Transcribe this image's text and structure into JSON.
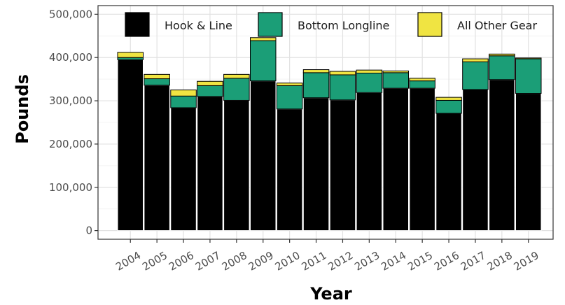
{
  "chart_data": {
    "type": "bar",
    "stacked": true,
    "title": "",
    "xlabel": "Year",
    "ylabel": "Pounds",
    "categories": [
      "2004",
      "2005",
      "2006",
      "2007",
      "2008",
      "2009",
      "2010",
      "2011",
      "2012",
      "2013",
      "2014",
      "2015",
      "2016",
      "2017",
      "2018",
      "2019"
    ],
    "series": [
      {
        "name": "Hook & Line",
        "color": "#000000",
        "values": [
          395000,
          336000,
          284000,
          310000,
          301000,
          346000,
          281000,
          307000,
          302000,
          319000,
          329000,
          329000,
          271000,
          326000,
          349000,
          317000
        ]
      },
      {
        "name": "Bottom Longline",
        "color": "#1b9e77",
        "values": [
          5000,
          15000,
          27000,
          25000,
          51000,
          93000,
          54000,
          58000,
          58000,
          45000,
          36000,
          17000,
          30000,
          64000,
          55000,
          80000
        ]
      },
      {
        "name": "All Other Gear",
        "color": "#f0e442",
        "values": [
          12000,
          10000,
          14000,
          10000,
          9000,
          7000,
          6000,
          7000,
          8000,
          7000,
          4000,
          6000,
          7000,
          7000,
          4000,
          2000
        ]
      }
    ],
    "ylim": [
      -20000,
      520000
    ],
    "yticks": [
      0,
      100000,
      200000,
      300000,
      400000,
      500000
    ],
    "ytick_labels": [
      "0",
      "100,000",
      "200,000",
      "300,000",
      "400,000",
      "500,000"
    ],
    "grid": true,
    "legend_position": "top-inside"
  }
}
